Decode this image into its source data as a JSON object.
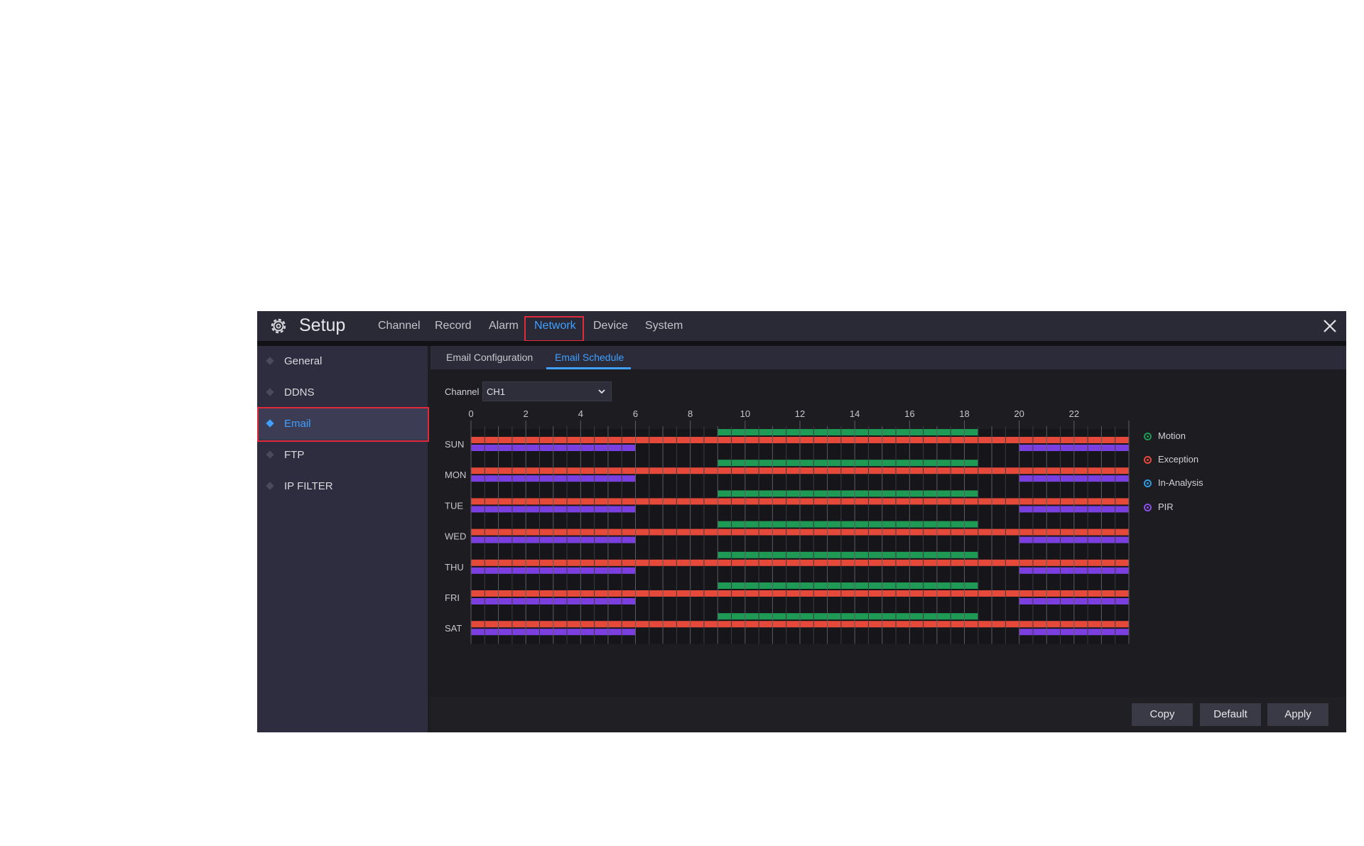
{
  "header": {
    "title": "Setup",
    "tabs": [
      {
        "label": "Channel",
        "active": false
      },
      {
        "label": "Record",
        "active": false
      },
      {
        "label": "Alarm",
        "active": false
      },
      {
        "label": "Network",
        "active": true
      },
      {
        "label": "Device",
        "active": false
      },
      {
        "label": "System",
        "active": false
      }
    ],
    "icons": {
      "app": "gear-icon",
      "close": "close-icon"
    }
  },
  "sidebar": {
    "items": [
      {
        "label": "General",
        "active": false
      },
      {
        "label": "DDNS",
        "active": false
      },
      {
        "label": "Email",
        "active": true
      },
      {
        "label": "FTP",
        "active": false
      },
      {
        "label": "IP FILTER",
        "active": false
      }
    ]
  },
  "subtabs": [
    {
      "label": "Email Configuration",
      "active": false
    },
    {
      "label": "Email Schedule",
      "active": true
    }
  ],
  "channel": {
    "label": "Channel",
    "value": "CH1"
  },
  "schedule": {
    "hour_labels": [
      "0",
      "2",
      "4",
      "6",
      "8",
      "10",
      "12",
      "14",
      "16",
      "18",
      "20",
      "22"
    ],
    "days": [
      "SUN",
      "MON",
      "TUE",
      "WED",
      "THU",
      "FRI",
      "SAT"
    ],
    "tracks": [
      {
        "type": "motion",
        "color": "#1f9a55",
        "ranges": [
          [
            9,
            18.5
          ]
        ]
      },
      {
        "type": "exception",
        "color": "#e5493a",
        "ranges": [
          [
            0,
            24
          ]
        ]
      },
      {
        "type": "pir",
        "color": "#7b3fe0",
        "ranges": [
          [
            0,
            6
          ],
          [
            20,
            24
          ]
        ]
      }
    ]
  },
  "legend": [
    {
      "label": "Motion",
      "color": "#1f9a55"
    },
    {
      "label": "Exception",
      "color": "#e5493a"
    },
    {
      "label": "In-Analysis",
      "color": "#2f9be0"
    },
    {
      "label": "PIR",
      "color": "#8a4fe6"
    }
  ],
  "buttons": {
    "copy": "Copy",
    "default": "Default",
    "apply": "Apply"
  },
  "colors": {
    "accent": "#3fa0ff",
    "highlight_box": "#e0293a"
  }
}
